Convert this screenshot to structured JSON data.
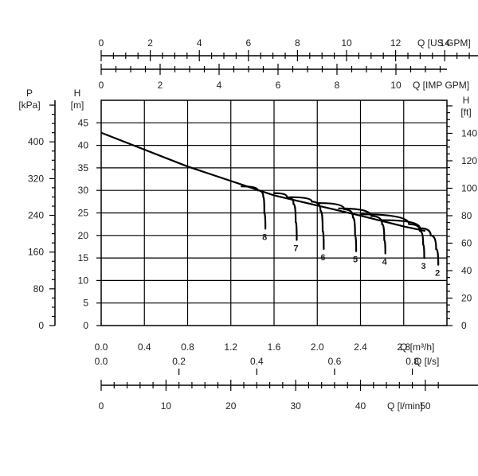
{
  "chart_data": {
    "type": "line",
    "title": "",
    "grid": true,
    "axes": {
      "x_m3h": {
        "label": "Q [m³/h]",
        "range": [
          0,
          3.2
        ],
        "ticks": [
          "0.0",
          "0.4",
          "0.8",
          "1.2",
          "1.6",
          "2.0",
          "2.4",
          "2.8"
        ]
      },
      "x_ls": {
        "label": "Q [l/s]",
        "ticks": [
          "0.0",
          "0.2",
          "0.4",
          "0.6",
          "0.8"
        ]
      },
      "x_lmin": {
        "label": "Q [l/min]",
        "ticks": [
          "0",
          "10",
          "20",
          "30",
          "40",
          "50"
        ]
      },
      "x_usgpm": {
        "label": "Q [US GPM]",
        "ticks": [
          "0",
          "2",
          "4",
          "6",
          "8",
          "10",
          "12",
          "14"
        ]
      },
      "x_impgpm": {
        "label": "Q [IMP GPM]",
        "ticks": [
          "0",
          "2",
          "4",
          "6",
          "8",
          "10"
        ]
      },
      "y_m": {
        "label_top": "H",
        "label_unit": "[m]",
        "range": [
          0,
          50
        ],
        "ticks": [
          "0",
          "5",
          "10",
          "15",
          "20",
          "25",
          "30",
          "35",
          "40",
          "45"
        ]
      },
      "y_kpa": {
        "label_top": "P",
        "label_unit": "[kPa]",
        "ticks": [
          "0",
          "80",
          "160",
          "240",
          "320",
          "400"
        ]
      },
      "y_ft": {
        "label_top": "H",
        "label_unit": "[ft]",
        "ticks": [
          "0",
          "20",
          "40",
          "60",
          "80",
          "100",
          "120",
          "140"
        ]
      }
    },
    "main_curve": {
      "x": [
        0.0,
        0.8,
        1.6,
        2.4,
        2.8,
        3.0
      ],
      "y": [
        42.8,
        35.3,
        28.9,
        24.4,
        22.0,
        21.0
      ]
    },
    "series": [
      {
        "name": "8",
        "x": [
          1.3,
          1.45,
          1.5,
          1.51,
          1.52
        ],
        "y": [
          30.9,
          30.0,
          28.6,
          25.0,
          21.5
        ]
      },
      {
        "name": "7",
        "x": [
          1.6,
          1.72,
          1.78,
          1.8,
          1.81
        ],
        "y": [
          29.4,
          28.5,
          27.0,
          23.0,
          19.0
        ]
      },
      {
        "name": "6",
        "x": [
          1.75,
          1.95,
          2.03,
          2.05,
          2.06
        ],
        "y": [
          28.5,
          27.5,
          25.5,
          21.0,
          17.0
        ]
      },
      {
        "name": "5",
        "x": [
          2.0,
          2.25,
          2.33,
          2.35,
          2.36
        ],
        "y": [
          27.2,
          25.8,
          24.0,
          20.0,
          16.5
        ]
      },
      {
        "name": "4",
        "x": [
          2.2,
          2.5,
          2.6,
          2.62,
          2.63
        ],
        "y": [
          26.0,
          24.3,
          22.5,
          19.0,
          16.0
        ]
      },
      {
        "name": "3",
        "x": [
          2.4,
          2.85,
          2.95,
          2.98,
          2.99
        ],
        "y": [
          24.7,
          22.5,
          21.0,
          18.0,
          15.0
        ]
      },
      {
        "name": "2",
        "x": [
          2.6,
          2.95,
          3.05,
          3.1,
          3.12
        ],
        "y": [
          23.4,
          21.6,
          20.0,
          17.0,
          13.5
        ]
      }
    ]
  }
}
